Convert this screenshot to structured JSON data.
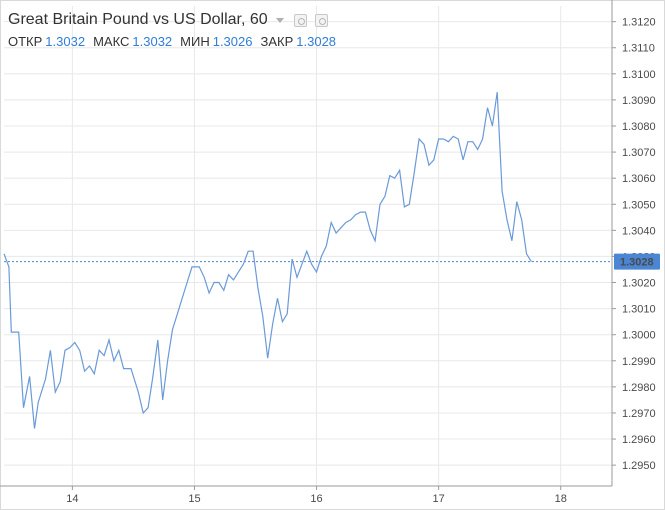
{
  "header": {
    "title": "Great Britain Pound vs US Dollar, 60",
    "ohlc": [
      {
        "label": "ОТКР",
        "value": "1.3032"
      },
      {
        "label": "МАКС",
        "value": "1.3032"
      },
      {
        "label": "МИН",
        "value": "1.3026"
      },
      {
        "label": "ЗАКР",
        "value": "1.3028"
      }
    ]
  },
  "colors": {
    "line": "#6a9ad8",
    "last_price_bg": "#4a86d4",
    "last_price_text": "#ffffff",
    "grid": "#e8e8e8",
    "axis_text": "#4a4a4a"
  },
  "chart_data": {
    "type": "line",
    "title": "Great Britain Pound vs US Dollar, 60",
    "xlabel": "",
    "ylabel": "",
    "x_ticks": [
      {
        "label": "14",
        "x": 13.6
      },
      {
        "label": "15",
        "x": 14.6
      },
      {
        "label": "16",
        "x": 15.6
      },
      {
        "label": "17",
        "x": 16.6
      },
      {
        "label": "18",
        "x": 17.6
      }
    ],
    "y_ticks": [
      "1.2950",
      "1.2960",
      "1.2970",
      "1.2980",
      "1.2990",
      "1.3000",
      "1.3010",
      "1.3020",
      "1.3030",
      "1.3040",
      "1.3050",
      "1.3060",
      "1.3070",
      "1.3080",
      "1.3090",
      "1.3100",
      "1.3110",
      "1.3120"
    ],
    "xlim": [
      13.04,
      18.02
    ],
    "ylim": [
      1.2942,
      1.3126
    ],
    "grid": true,
    "last_price": {
      "value": 1.3028,
      "label": "1.3028"
    },
    "series": [
      {
        "points": [
          [
            13.04,
            1.3031
          ],
          [
            13.08,
            1.3026
          ],
          [
            13.1,
            1.3001
          ],
          [
            13.16,
            1.3001
          ],
          [
            13.2,
            1.2972
          ],
          [
            13.25,
            1.2984
          ],
          [
            13.29,
            1.2964
          ],
          [
            13.32,
            1.2974
          ],
          [
            13.38,
            1.2983
          ],
          [
            13.42,
            1.2994
          ],
          [
            13.46,
            1.2978
          ],
          [
            13.5,
            1.2982
          ],
          [
            13.54,
            1.2994
          ],
          [
            13.58,
            1.2995
          ],
          [
            13.62,
            1.2997
          ],
          [
            13.66,
            1.2994
          ],
          [
            13.7,
            1.2986
          ],
          [
            13.74,
            1.2988
          ],
          [
            13.78,
            1.2985
          ],
          [
            13.82,
            1.2994
          ],
          [
            13.86,
            1.2992
          ],
          [
            13.9,
            1.2998
          ],
          [
            13.94,
            1.299
          ],
          [
            13.98,
            1.2994
          ],
          [
            14.02,
            1.2987
          ],
          [
            14.08,
            1.2987
          ],
          [
            14.14,
            1.2978
          ],
          [
            14.18,
            1.297
          ],
          [
            14.22,
            1.2972
          ],
          [
            14.26,
            1.2984
          ],
          [
            14.3,
            1.2998
          ],
          [
            14.34,
            1.2975
          ],
          [
            14.38,
            1.299
          ],
          [
            14.42,
            1.3002
          ],
          [
            14.46,
            1.3008
          ],
          [
            14.5,
            1.3014
          ],
          [
            14.54,
            1.302
          ],
          [
            14.58,
            1.3026
          ],
          [
            14.64,
            1.3026
          ],
          [
            14.68,
            1.3022
          ],
          [
            14.72,
            1.3016
          ],
          [
            14.76,
            1.302
          ],
          [
            14.8,
            1.302
          ],
          [
            14.84,
            1.3017
          ],
          [
            14.88,
            1.3023
          ],
          [
            14.92,
            1.3021
          ],
          [
            14.96,
            1.3024
          ],
          [
            15.0,
            1.3027
          ],
          [
            15.04,
            1.3032
          ],
          [
            15.08,
            1.3032
          ],
          [
            15.12,
            1.3018
          ],
          [
            15.16,
            1.3007
          ],
          [
            15.2,
            1.2991
          ],
          [
            15.24,
            1.3004
          ],
          [
            15.28,
            1.3014
          ],
          [
            15.32,
            1.3005
          ],
          [
            15.36,
            1.3008
          ],
          [
            15.4,
            1.3029
          ],
          [
            15.44,
            1.3022
          ],
          [
            15.48,
            1.3027
          ],
          [
            15.52,
            1.3032
          ],
          [
            15.56,
            1.3027
          ],
          [
            15.6,
            1.3024
          ],
          [
            15.64,
            1.303
          ],
          [
            15.68,
            1.3034
          ],
          [
            15.72,
            1.3043
          ],
          [
            15.76,
            1.3039
          ],
          [
            15.8,
            1.3041
          ],
          [
            15.84,
            1.3043
          ],
          [
            15.88,
            1.3044
          ],
          [
            15.92,
            1.3046
          ],
          [
            15.96,
            1.3047
          ],
          [
            16.0,
            1.3047
          ],
          [
            16.04,
            1.304
          ],
          [
            16.08,
            1.3036
          ],
          [
            16.12,
            1.305
          ],
          [
            16.16,
            1.3053
          ],
          [
            16.2,
            1.3061
          ],
          [
            16.24,
            1.306
          ],
          [
            16.28,
            1.3063
          ],
          [
            16.32,
            1.3049
          ],
          [
            16.36,
            1.305
          ],
          [
            16.4,
            1.3062
          ],
          [
            16.44,
            1.3075
          ],
          [
            16.48,
            1.3073
          ],
          [
            16.52,
            1.3065
          ],
          [
            16.56,
            1.3067
          ],
          [
            16.6,
            1.3075
          ],
          [
            16.64,
            1.3075
          ],
          [
            16.68,
            1.3074
          ],
          [
            16.72,
            1.3076
          ],
          [
            16.76,
            1.3075
          ],
          [
            16.8,
            1.3067
          ],
          [
            16.84,
            1.3074
          ],
          [
            16.88,
            1.3074
          ],
          [
            16.92,
            1.3071
          ],
          [
            16.96,
            1.3075
          ],
          [
            17.0,
            1.3087
          ],
          [
            17.04,
            1.308
          ],
          [
            17.08,
            1.3093
          ],
          [
            17.12,
            1.3055
          ],
          [
            17.16,
            1.3044
          ],
          [
            17.2,
            1.3036
          ],
          [
            17.24,
            1.3051
          ],
          [
            17.28,
            1.3044
          ],
          [
            17.32,
            1.3031
          ],
          [
            17.36,
            1.3028
          ]
        ]
      }
    ]
  }
}
